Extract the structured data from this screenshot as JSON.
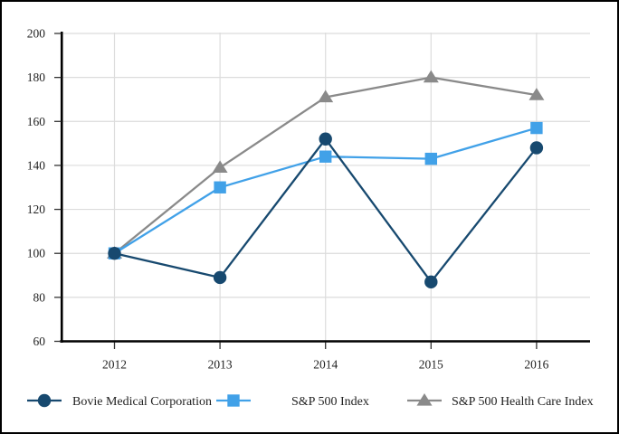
{
  "chart_data": {
    "type": "line",
    "title": "",
    "xlabel": "",
    "ylabel": "",
    "x": [
      "2012",
      "2013",
      "2014",
      "2015",
      "2016"
    ],
    "series": [
      {
        "name": "Bovie Medical Corporation",
        "marker": "circle",
        "color": "#17496F",
        "values": [
          100,
          89,
          152,
          87,
          148
        ]
      },
      {
        "name": "S&P 500 Index",
        "marker": "square",
        "color": "#41A1E8",
        "values": [
          100,
          130,
          144,
          143,
          157
        ]
      },
      {
        "name": "S&P 500 Health Care Index",
        "marker": "triangle",
        "color": "#8A8A8A",
        "values": [
          100,
          139,
          171,
          180,
          172
        ]
      }
    ],
    "ylim": [
      60,
      200
    ],
    "yticks": [
      200,
      180,
      160,
      140,
      120,
      100,
      80,
      60
    ],
    "grid": true,
    "legend_position": "bottom",
    "colors": {
      "axis": "#000000",
      "gridline": "#DCDCDC",
      "tick": "#333333",
      "text": "#1F1F1F",
      "background": "#FFFFFF"
    }
  }
}
